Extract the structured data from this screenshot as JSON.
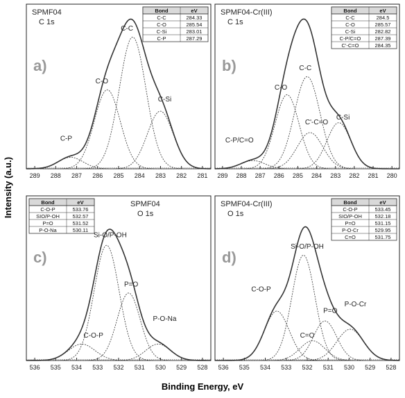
{
  "figure": {
    "ylabel": "Intensity (a.u.)",
    "xlabel": "Binding Energy, eV"
  },
  "chart_data": [
    {
      "panel": "a)",
      "type": "line",
      "title_lines": [
        "SPMF04",
        "C 1s"
      ],
      "x_ticks": [
        289,
        288,
        287,
        286,
        285,
        284,
        283,
        282,
        281
      ],
      "xlim": [
        289.4,
        280.6
      ],
      "ylim": [
        0,
        1
      ],
      "x_reversed": true,
      "legend": {
        "position": "top-right",
        "headers": [
          "Bond",
          "eV"
        ],
        "rows": [
          [
            "C-C",
            "284.33"
          ],
          [
            "C-O",
            "285.54"
          ],
          [
            "C-Si",
            "283.01"
          ],
          [
            "C-P",
            "287.29"
          ]
        ]
      },
      "peaks": [
        {
          "label": "C-C",
          "center": 284.33,
          "height": 0.8,
          "fwhm": 1.5
        },
        {
          "label": "C-O",
          "center": 285.54,
          "height": 0.48,
          "fwhm": 1.45
        },
        {
          "label": "C-Si",
          "center": 283.01,
          "height": 0.35,
          "fwhm": 1.45
        },
        {
          "label": "C-P",
          "center": 287.29,
          "height": 0.07,
          "fwhm": 1.4
        }
      ],
      "peak_labels": [
        {
          "text": "C-C",
          "x": 284.6,
          "y": 0.84
        },
        {
          "text": "C-O",
          "x": 285.8,
          "y": 0.52
        },
        {
          "text": "C-Si",
          "x": 282.8,
          "y": 0.41
        },
        {
          "text": "C-P",
          "x": 287.5,
          "y": 0.17
        }
      ]
    },
    {
      "panel": "b)",
      "type": "line",
      "title_lines": [
        "SPMF04-Cr(III)",
        "C 1s"
      ],
      "x_ticks": [
        289,
        288,
        287,
        286,
        285,
        284,
        283,
        282,
        281,
        280
      ],
      "xlim": [
        289.4,
        279.6
      ],
      "ylim": [
        0,
        1
      ],
      "x_reversed": true,
      "legend": {
        "position": "top-right",
        "headers": [
          "Bond",
          "eV"
        ],
        "rows": [
          [
            "C-C",
            "284.5"
          ],
          [
            "C-O",
            "285.57"
          ],
          [
            "C-Si",
            "282.82"
          ],
          [
            "C-P/C=O",
            "287.39"
          ],
          [
            "C'-C=O",
            "284.35"
          ]
        ]
      },
      "peaks": [
        {
          "label": "C-C",
          "center": 284.5,
          "height": 0.56,
          "fwhm": 1.6
        },
        {
          "label": "C-O",
          "center": 285.57,
          "height": 0.45,
          "fwhm": 1.5
        },
        {
          "label": "C-Si",
          "center": 282.82,
          "height": 0.28,
          "fwhm": 1.5
        },
        {
          "label": "C-P/C=O",
          "center": 287.39,
          "height": 0.05,
          "fwhm": 1.5
        },
        {
          "label": "C'-C=O",
          "center": 284.35,
          "height": 0.22,
          "fwhm": 1.6
        }
      ],
      "peak_labels": [
        {
          "text": "C-C",
          "x": 284.6,
          "y": 0.6
        },
        {
          "text": "C-O",
          "x": 285.9,
          "y": 0.48
        },
        {
          "text": "C'-C=O",
          "x": 284.0,
          "y": 0.27
        },
        {
          "text": "C-Si",
          "x": 282.6,
          "y": 0.3
        },
        {
          "text": "C-P/C=O",
          "x": 288.1,
          "y": 0.16
        }
      ]
    },
    {
      "panel": "c)",
      "type": "line",
      "title_lines": [
        "SPMF04",
        "O 1s"
      ],
      "x_ticks": [
        536,
        535,
        534,
        533,
        532,
        531,
        530,
        529,
        528
      ],
      "xlim": [
        536.4,
        527.6
      ],
      "ylim": [
        0,
        1
      ],
      "x_reversed": true,
      "legend": {
        "position": "top-left",
        "headers": [
          "Bond",
          "eV"
        ],
        "rows": [
          [
            "C-O-P",
            "533.76"
          ],
          [
            "SIO/P-OH",
            "532.57"
          ],
          [
            "P=O",
            "531.52"
          ],
          [
            "P-O-Na",
            "530.11"
          ]
        ]
      },
      "peaks": [
        {
          "label": "C-O-P",
          "center": 533.76,
          "height": 0.1,
          "fwhm": 1.5
        },
        {
          "label": "Si-O/P-OH",
          "center": 532.57,
          "height": 0.7,
          "fwhm": 1.4
        },
        {
          "label": "P=O",
          "center": 531.52,
          "height": 0.41,
          "fwhm": 1.3
        },
        {
          "label": "P-O-Na",
          "center": 530.11,
          "height": 0.1,
          "fwhm": 1.4
        }
      ],
      "peak_labels": [
        {
          "text": "Si-O/P-OH",
          "x": 532.4,
          "y": 0.75
        },
        {
          "text": "P=O",
          "x": 531.4,
          "y": 0.45
        },
        {
          "text": "P-O-Na",
          "x": 529.8,
          "y": 0.24
        },
        {
          "text": "C-O-P",
          "x": 533.2,
          "y": 0.14
        }
      ]
    },
    {
      "panel": "d)",
      "type": "line",
      "title_lines": [
        "SPMF04-Cr(III)",
        "O 1s"
      ],
      "x_ticks": [
        536,
        535,
        534,
        533,
        532,
        531,
        530,
        529,
        528
      ],
      "xlim": [
        536.4,
        527.6
      ],
      "ylim": [
        0,
        1
      ],
      "x_reversed": true,
      "legend": {
        "position": "top-right",
        "headers": [
          "Bond",
          "eV"
        ],
        "rows": [
          [
            "C-O-P",
            "533.45"
          ],
          [
            "SIO/P-OH",
            "532.18"
          ],
          [
            "P=O",
            "531.15"
          ],
          [
            "P-O-Cr",
            "529.95"
          ],
          [
            "C=O",
            "531.75"
          ]
        ]
      },
      "peaks": [
        {
          "label": "C-O-P",
          "center": 533.45,
          "height": 0.3,
          "fwhm": 1.4
        },
        {
          "label": "Si-O/P-OH",
          "center": 532.18,
          "height": 0.64,
          "fwhm": 1.3
        },
        {
          "label": "P=O",
          "center": 531.15,
          "height": 0.24,
          "fwhm": 1.3
        },
        {
          "label": "P-O-Cr",
          "center": 529.95,
          "height": 0.19,
          "fwhm": 1.5
        },
        {
          "label": "C=O",
          "center": 531.75,
          "height": 0.12,
          "fwhm": 1.4
        }
      ],
      "peak_labels": [
        {
          "text": "Si-O/P-OH",
          "x": 532.0,
          "y": 0.68
        },
        {
          "text": "C-O-P",
          "x": 534.2,
          "y": 0.42
        },
        {
          "text": "P=O",
          "x": 530.9,
          "y": 0.29
        },
        {
          "text": "P-O-Cr",
          "x": 529.7,
          "y": 0.33
        },
        {
          "text": "C=O",
          "x": 532.0,
          "y": 0.14
        }
      ]
    }
  ]
}
